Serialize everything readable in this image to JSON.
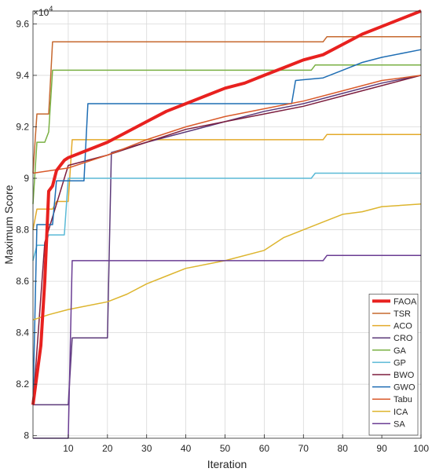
{
  "chart_data": {
    "type": "line",
    "xlabel": "Iteration",
    "ylabel": "Maximum Score",
    "exponent_label": "×10",
    "exponent_power": "4",
    "xlim": [
      1,
      100
    ],
    "ylim": [
      79900,
      96500
    ],
    "xticks": [
      10,
      20,
      30,
      40,
      50,
      60,
      70,
      80,
      90,
      100
    ],
    "yticks": [
      80000,
      82000,
      84000,
      86000,
      88000,
      90000,
      92000,
      94000,
      96000
    ],
    "ytick_labels": [
      "8",
      "8.2",
      "8.4",
      "8.6",
      "8.8",
      "9",
      "9.2",
      "9.4",
      "9.6"
    ],
    "grid": true,
    "legend_position": "bottom-right",
    "series": [
      {
        "name": "FAOA",
        "color": "#e8211f",
        "width": 4,
        "points": [
          [
            1,
            81200
          ],
          [
            3,
            83500
          ],
          [
            4,
            86000
          ],
          [
            5,
            89500
          ],
          [
            6,
            89700
          ],
          [
            7,
            90300
          ],
          [
            8,
            90500
          ],
          [
            9,
            90700
          ],
          [
            10,
            90800
          ],
          [
            15,
            91100
          ],
          [
            20,
            91400
          ],
          [
            25,
            91800
          ],
          [
            30,
            92200
          ],
          [
            35,
            92600
          ],
          [
            40,
            92900
          ],
          [
            45,
            93200
          ],
          [
            50,
            93500
          ],
          [
            55,
            93700
          ],
          [
            60,
            94000
          ],
          [
            65,
            94300
          ],
          [
            70,
            94600
          ],
          [
            75,
            94800
          ],
          [
            80,
            95200
          ],
          [
            85,
            95600
          ],
          [
            90,
            95900
          ],
          [
            95,
            96200
          ],
          [
            100,
            96500
          ]
        ]
      },
      {
        "name": "TSR",
        "color": "#c6682f",
        "width": 1.5,
        "points": [
          [
            1,
            90200
          ],
          [
            2,
            92500
          ],
          [
            5,
            92500
          ],
          [
            6,
            95300
          ],
          [
            75,
            95300
          ],
          [
            76,
            95500
          ],
          [
            100,
            95500
          ]
        ]
      },
      {
        "name": "ACO",
        "color": "#e3aa2a",
        "width": 1.5,
        "points": [
          [
            1,
            88000
          ],
          [
            2,
            88800
          ],
          [
            6,
            88800
          ],
          [
            7,
            89100
          ],
          [
            10,
            89100
          ],
          [
            11,
            91500
          ],
          [
            75,
            91500
          ],
          [
            76,
            91700
          ],
          [
            100,
            91700
          ]
        ]
      },
      {
        "name": "CRO",
        "color": "#5c3a7a",
        "width": 1.5,
        "points": [
          [
            1,
            81200
          ],
          [
            10,
            81200
          ],
          [
            11,
            83800
          ],
          [
            20,
            83800
          ],
          [
            21,
            91000
          ],
          [
            30,
            91400
          ],
          [
            40,
            91800
          ],
          [
            50,
            92200
          ],
          [
            60,
            92600
          ],
          [
            70,
            92900
          ],
          [
            80,
            93300
          ],
          [
            90,
            93700
          ],
          [
            100,
            94000
          ]
        ]
      },
      {
        "name": "GA",
        "color": "#7ab043",
        "width": 1.5,
        "points": [
          [
            1,
            89000
          ],
          [
            2,
            91400
          ],
          [
            4,
            91400
          ],
          [
            5,
            91800
          ],
          [
            6,
            94200
          ],
          [
            72,
            94200
          ],
          [
            73,
            94400
          ],
          [
            100,
            94400
          ]
        ]
      },
      {
        "name": "GP",
        "color": "#5ab9d6",
        "width": 1.5,
        "points": [
          [
            1,
            86800
          ],
          [
            2,
            87400
          ],
          [
            4,
            87400
          ],
          [
            5,
            87800
          ],
          [
            9,
            87800
          ],
          [
            10,
            90000
          ],
          [
            72,
            90000
          ],
          [
            73,
            90200
          ],
          [
            100,
            90200
          ]
        ]
      },
      {
        "name": "BWO",
        "color": "#7d1f3f",
        "width": 1.5,
        "points": [
          [
            1,
            81200
          ],
          [
            4,
            87500
          ],
          [
            10,
            90500
          ],
          [
            20,
            90900
          ],
          [
            30,
            91400
          ],
          [
            40,
            91900
          ],
          [
            50,
            92200
          ],
          [
            60,
            92500
          ],
          [
            70,
            92800
          ],
          [
            80,
            93200
          ],
          [
            90,
            93600
          ],
          [
            100,
            94000
          ]
        ]
      },
      {
        "name": "GWO",
        "color": "#1f6eb4",
        "width": 1.5,
        "points": [
          [
            1,
            81200
          ],
          [
            2,
            88200
          ],
          [
            6,
            88200
          ],
          [
            7,
            89900
          ],
          [
            14,
            89900
          ],
          [
            15,
            92900
          ],
          [
            67,
            92900
          ],
          [
            68,
            93800
          ],
          [
            75,
            93900
          ],
          [
            80,
            94200
          ],
          [
            85,
            94500
          ],
          [
            90,
            94700
          ],
          [
            100,
            95000
          ]
        ]
      },
      {
        "name": "Tabu",
        "color": "#d95a2b",
        "width": 1.5,
        "points": [
          [
            1,
            90200
          ],
          [
            10,
            90400
          ],
          [
            20,
            90900
          ],
          [
            30,
            91500
          ],
          [
            40,
            92000
          ],
          [
            50,
            92400
          ],
          [
            60,
            92700
          ],
          [
            70,
            93000
          ],
          [
            80,
            93400
          ],
          [
            90,
            93800
          ],
          [
            100,
            94000
          ]
        ]
      },
      {
        "name": "ICA",
        "color": "#ddb52e",
        "width": 1.5,
        "points": [
          [
            1,
            84500
          ],
          [
            5,
            84700
          ],
          [
            10,
            84900
          ],
          [
            20,
            85200
          ],
          [
            25,
            85500
          ],
          [
            30,
            85900
          ],
          [
            35,
            86200
          ],
          [
            40,
            86500
          ],
          [
            50,
            86800
          ],
          [
            60,
            87200
          ],
          [
            65,
            87700
          ],
          [
            70,
            88000
          ],
          [
            75,
            88300
          ],
          [
            80,
            88600
          ],
          [
            85,
            88700
          ],
          [
            90,
            88900
          ],
          [
            100,
            89000
          ]
        ]
      },
      {
        "name": "SA",
        "color": "#6a3c93",
        "width": 1.5,
        "points": [
          [
            1,
            79900
          ],
          [
            10,
            79900
          ],
          [
            11,
            86800
          ],
          [
            75,
            86800
          ],
          [
            76,
            87000
          ],
          [
            100,
            87000
          ]
        ]
      }
    ]
  }
}
